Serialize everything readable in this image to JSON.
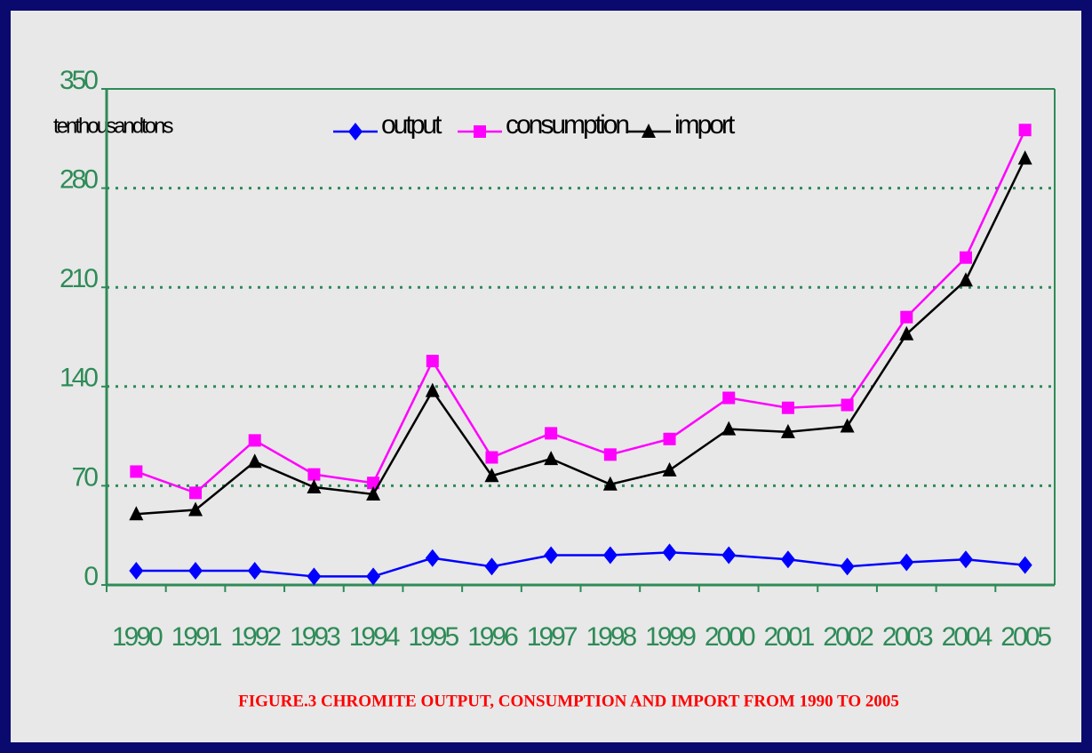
{
  "chart_data": {
    "type": "line",
    "title": "FIGURE.3  CHROMITE OUTPUT, CONSUMPTION AND IMPORT FROM 1990 TO 2005",
    "y_label": "tenthousandtons",
    "categories": [
      "1990",
      "1991",
      "1992",
      "1993",
      "1994",
      "1995",
      "1996",
      "1997",
      "1998",
      "1999",
      "2000",
      "2001",
      "2002",
      "2003",
      "2004",
      "2005"
    ],
    "series": [
      {
        "name": "output",
        "color": "#0000ff",
        "marker": "diamond",
        "values": [
          10,
          10,
          10,
          6,
          6,
          19,
          13,
          21,
          21,
          23,
          21,
          18,
          13,
          16,
          18,
          14
        ]
      },
      {
        "name": "consumption",
        "color": "#ff00ff",
        "marker": "square",
        "values": [
          80,
          65,
          102,
          78,
          72,
          158,
          90,
          107,
          92,
          103,
          132,
          125,
          127,
          189,
          231,
          321
        ]
      },
      {
        "name": "import",
        "color": "#000000",
        "marker": "triangle",
        "values": [
          50,
          53,
          87,
          69,
          64,
          137,
          77,
          89,
          71,
          81,
          110,
          108,
          112,
          177,
          215,
          301
        ]
      }
    ],
    "ylim": [
      0,
      350
    ],
    "yticks": [
      0,
      70,
      140,
      210,
      280,
      350
    ],
    "grid": true,
    "legend": "top"
  }
}
